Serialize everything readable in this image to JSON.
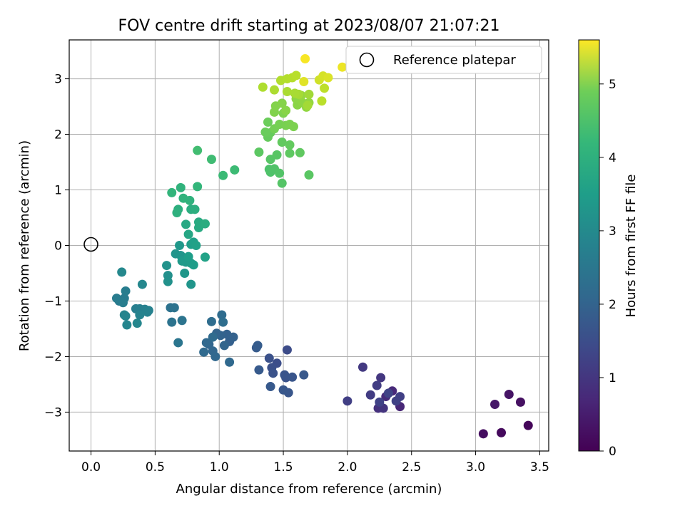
{
  "chart_data": {
    "type": "scatter",
    "title": "FOV centre drift starting at 2023/08/07 21:07:21",
    "xlabel": "Angular distance from reference (arcmin)",
    "ylabel": "Rotation from reference (arcmin)",
    "xlim": [
      -0.17,
      3.57
    ],
    "ylim": [
      -3.7,
      3.7
    ],
    "xticks": [
      "0.0",
      "0.5",
      "1.0",
      "1.5",
      "2.0",
      "2.5",
      "3.0",
      "3.5"
    ],
    "yticks": [
      "−3",
      "−2",
      "−1",
      "0",
      "1",
      "2",
      "3"
    ],
    "grid": true,
    "legend": {
      "position": "top-right",
      "entries": [
        "Reference platepar"
      ]
    },
    "reference_point": {
      "x": 0.0,
      "y": 0.0,
      "marker": "open-circle"
    },
    "colorbar": {
      "label": "Hours from first FF file",
      "colormap": "viridis",
      "range": [
        0,
        5.6
      ],
      "ticks": [
        "0",
        "1",
        "2",
        "3",
        "4",
        "5"
      ]
    },
    "series": [
      {
        "name": "",
        "points": [
          [
            3.41,
            -3.24,
            0.1
          ],
          [
            3.2,
            -3.37,
            0.15
          ],
          [
            3.06,
            -3.39,
            0.2
          ],
          [
            3.35,
            -2.82,
            0.25
          ],
          [
            3.26,
            -2.68,
            0.3
          ],
          [
            3.15,
            -2.86,
            0.35
          ],
          [
            2.41,
            -2.9,
            0.6
          ],
          [
            2.35,
            -2.62,
            0.65
          ],
          [
            2.3,
            -2.72,
            0.7
          ],
          [
            2.26,
            -2.92,
            0.75
          ],
          [
            2.24,
            -2.93,
            0.8
          ],
          [
            2.28,
            -2.93,
            0.85
          ],
          [
            2.26,
            -2.38,
            0.9
          ],
          [
            2.12,
            -2.19,
            0.95
          ],
          [
            2.18,
            -2.69,
            1.0
          ],
          [
            2.23,
            -2.52,
            1.02
          ],
          [
            2.0,
            -2.8,
            1.05
          ],
          [
            2.41,
            -2.72,
            1.08
          ],
          [
            2.38,
            -2.8,
            1.1
          ],
          [
            2.25,
            -2.82,
            1.12
          ],
          [
            2.32,
            -2.66,
            1.15
          ],
          [
            1.53,
            -1.88,
            1.3
          ],
          [
            1.45,
            -2.12,
            1.35
          ],
          [
            1.41,
            -2.2,
            1.38
          ],
          [
            1.39,
            -2.03,
            1.4
          ],
          [
            1.42,
            -2.3,
            1.42
          ],
          [
            1.52,
            -2.38,
            1.44
          ],
          [
            1.51,
            -2.33,
            1.46
          ],
          [
            1.57,
            -2.37,
            1.48
          ],
          [
            1.54,
            -2.65,
            1.5
          ],
          [
            1.5,
            -2.6,
            1.52
          ],
          [
            1.66,
            -2.33,
            1.54
          ],
          [
            1.4,
            -2.54,
            1.56
          ],
          [
            1.31,
            -2.24,
            1.58
          ],
          [
            1.29,
            -1.84,
            1.6
          ],
          [
            1.3,
            -1.8,
            1.62
          ],
          [
            1.08,
            -1.73,
            1.7
          ],
          [
            1.06,
            -1.6,
            1.72
          ],
          [
            1.11,
            -1.65,
            1.74
          ],
          [
            1.01,
            -1.62,
            1.76
          ],
          [
            0.98,
            -1.58,
            1.78
          ],
          [
            1.04,
            -1.8,
            1.8
          ],
          [
            0.92,
            -1.78,
            1.82
          ],
          [
            0.95,
            -1.9,
            1.84
          ],
          [
            0.97,
            -2.0,
            1.86
          ],
          [
            0.9,
            -1.75,
            1.88
          ],
          [
            1.08,
            -2.1,
            1.9
          ],
          [
            0.88,
            -1.92,
            1.92
          ],
          [
            0.95,
            -1.65,
            1.94
          ],
          [
            1.02,
            -1.25,
            1.96
          ],
          [
            0.94,
            -1.37,
            1.98
          ],
          [
            1.03,
            -1.38,
            2.0
          ],
          [
            0.62,
            -1.12,
            2.1
          ],
          [
            0.65,
            -1.12,
            2.12
          ],
          [
            0.63,
            -1.38,
            2.14
          ],
          [
            0.71,
            -1.35,
            2.16
          ],
          [
            0.68,
            -1.75,
            2.18
          ],
          [
            0.22,
            -1.0,
            2.3
          ],
          [
            0.26,
            -0.95,
            2.32
          ],
          [
            0.2,
            -0.95,
            2.34
          ],
          [
            0.25,
            -1.03,
            2.36
          ],
          [
            0.27,
            -0.82,
            2.38
          ],
          [
            0.35,
            -1.14,
            2.4
          ],
          [
            0.38,
            -1.14,
            2.42
          ],
          [
            0.42,
            -1.15,
            2.44
          ],
          [
            0.45,
            -1.17,
            2.46
          ],
          [
            0.44,
            -1.2,
            2.48
          ],
          [
            0.38,
            -1.25,
            2.5
          ],
          [
            0.26,
            -1.25,
            2.52
          ],
          [
            0.27,
            -1.27,
            2.54
          ],
          [
            0.28,
            -1.43,
            2.56
          ],
          [
            0.36,
            -1.4,
            2.58
          ],
          [
            0.4,
            -0.7,
            2.6
          ],
          [
            0.24,
            -0.48,
            2.62
          ],
          [
            0.6,
            -0.54,
            2.8
          ],
          [
            0.6,
            -0.65,
            2.82
          ],
          [
            0.59,
            -0.36,
            2.85
          ],
          [
            0.66,
            -0.15,
            2.88
          ],
          [
            0.7,
            -0.18,
            2.9
          ],
          [
            0.78,
            -0.7,
            2.92
          ],
          [
            0.73,
            -0.5,
            2.95
          ],
          [
            0.69,
            0.0,
            2.98
          ],
          [
            0.74,
            -0.3,
            3.0
          ],
          [
            0.71,
            -0.28,
            3.02
          ],
          [
            0.78,
            -0.32,
            3.05
          ],
          [
            0.8,
            -0.35,
            3.08
          ],
          [
            0.76,
            -0.2,
            3.1
          ],
          [
            0.78,
            0.02,
            3.12
          ],
          [
            0.8,
            0.06,
            3.15
          ],
          [
            0.82,
            0.0,
            3.18
          ],
          [
            0.89,
            -0.21,
            3.2
          ],
          [
            0.76,
            0.2,
            3.3
          ],
          [
            0.74,
            0.38,
            3.35
          ],
          [
            0.84,
            0.32,
            3.4
          ],
          [
            0.84,
            0.42,
            3.42
          ],
          [
            0.89,
            0.39,
            3.45
          ],
          [
            0.78,
            0.65,
            3.48
          ],
          [
            0.81,
            0.65,
            3.5
          ],
          [
            0.68,
            0.65,
            3.52
          ],
          [
            0.67,
            0.59,
            3.55
          ],
          [
            0.77,
            0.81,
            3.58
          ],
          [
            0.72,
            0.85,
            3.6
          ],
          [
            0.7,
            1.04,
            3.62
          ],
          [
            0.63,
            0.95,
            3.65
          ],
          [
            0.83,
            1.06,
            3.68
          ],
          [
            1.03,
            1.26,
            3.8
          ],
          [
            1.12,
            1.36,
            3.82
          ],
          [
            0.94,
            1.55,
            3.85
          ],
          [
            0.83,
            1.71,
            3.88
          ],
          [
            1.39,
            1.37,
            4.0
          ],
          [
            1.4,
            1.32,
            4.02
          ],
          [
            1.43,
            1.38,
            4.04
          ],
          [
            1.47,
            1.3,
            4.06
          ],
          [
            1.49,
            1.12,
            4.08
          ],
          [
            1.4,
            1.55,
            4.1
          ],
          [
            1.45,
            1.63,
            4.12
          ],
          [
            1.7,
            1.27,
            4.14
          ],
          [
            1.31,
            1.68,
            4.16
          ],
          [
            1.55,
            1.66,
            4.18
          ],
          [
            1.63,
            1.67,
            4.2
          ],
          [
            1.49,
            1.86,
            4.22
          ],
          [
            1.55,
            1.81,
            4.24
          ],
          [
            1.38,
            1.95,
            4.26
          ],
          [
            1.4,
            2.03,
            4.28
          ],
          [
            1.36,
            2.04,
            4.3
          ],
          [
            1.38,
            2.22,
            4.32
          ],
          [
            1.43,
            2.1,
            4.4
          ],
          [
            1.47,
            2.18,
            4.42
          ],
          [
            1.52,
            2.16,
            4.44
          ],
          [
            1.55,
            2.18,
            4.46
          ],
          [
            1.58,
            2.14,
            4.48
          ],
          [
            1.5,
            2.38,
            4.5
          ],
          [
            1.43,
            2.4,
            4.52
          ],
          [
            1.44,
            2.51,
            4.54
          ],
          [
            1.49,
            2.56,
            4.56
          ],
          [
            1.52,
            2.43,
            4.58
          ],
          [
            1.61,
            2.53,
            4.6
          ],
          [
            1.6,
            2.64,
            4.62
          ],
          [
            1.65,
            2.57,
            4.64
          ],
          [
            1.68,
            2.49,
            4.66
          ],
          [
            1.7,
            2.57,
            4.68
          ],
          [
            1.64,
            2.7,
            4.7
          ],
          [
            1.7,
            2.72,
            4.8
          ],
          [
            1.69,
            2.52,
            4.82
          ],
          [
            1.62,
            2.72,
            4.84
          ],
          [
            1.59,
            2.74,
            4.86
          ],
          [
            1.53,
            2.77,
            4.88
          ],
          [
            1.43,
            2.8,
            4.9
          ],
          [
            1.34,
            2.85,
            4.92
          ],
          [
            1.48,
            2.97,
            4.94
          ],
          [
            1.53,
            3.0,
            4.96
          ],
          [
            1.57,
            3.02,
            4.98
          ],
          [
            1.6,
            3.06,
            5.0
          ],
          [
            1.8,
            2.6,
            5.02
          ],
          [
            1.82,
            2.83,
            5.05
          ],
          [
            1.78,
            2.98,
            5.2
          ],
          [
            1.81,
            3.05,
            5.25
          ],
          [
            1.85,
            3.02,
            5.3
          ],
          [
            1.66,
            2.95,
            5.35
          ],
          [
            1.96,
            3.21,
            5.45
          ],
          [
            1.67,
            3.36,
            5.55
          ]
        ]
      }
    ]
  }
}
